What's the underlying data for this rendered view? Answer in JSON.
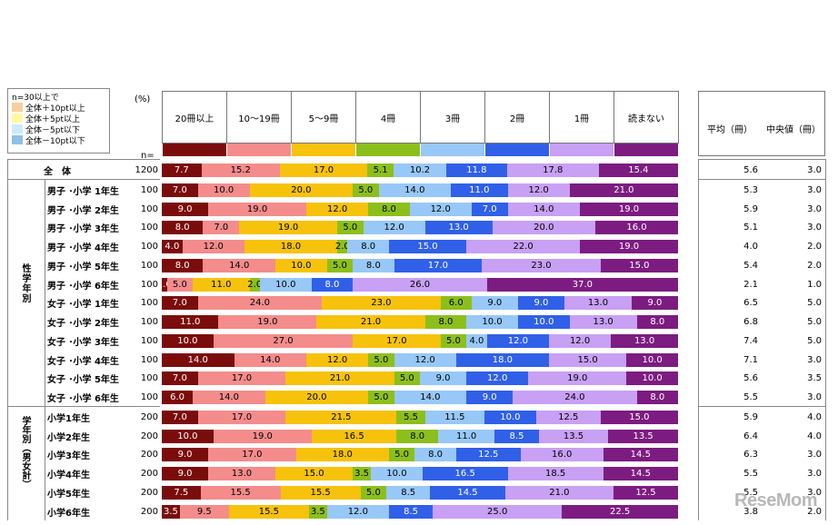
{
  "legend": {
    "caption": "n=30以上で",
    "items": [
      {
        "label": "全体＋10pt以上",
        "color": "#f8cf9c"
      },
      {
        "label": "全体＋5pt以上",
        "color": "#fffaa0"
      },
      {
        "label": "全体－5pt以下",
        "color": "#c8ecfa"
      },
      {
        "label": "全体－10pt以下",
        "color": "#8ec0e8"
      }
    ]
  },
  "unit_label": "(%)",
  "n_label": "n=",
  "stat_headers": [
    "平均（冊）",
    "中央値（冊）"
  ],
  "colors": [
    "#7b0c0c",
    "#f48c8c",
    "#f6c20c",
    "#8cbf1c",
    "#98c8f8",
    "#3060e8",
    "#c8a0f4",
    "#7c1c80"
  ],
  "text_colors": [
    "#ffffff",
    "#000000",
    "#000000",
    "#000000",
    "#000000",
    "#ffffff",
    "#000000",
    "#ffffff"
  ],
  "groups": [
    {
      "label": "性学年別"
    },
    {
      "label": "学年別（男女計）"
    }
  ],
  "chart_data": {
    "type": "bar",
    "categories": [
      "20冊以上",
      "10～19冊",
      "5～9冊",
      "4冊",
      "3冊",
      "2冊",
      "1冊",
      "読まない"
    ],
    "rows": [
      {
        "label": "全　体",
        "n": "1200",
        "values": [
          7.7,
          15.2,
          17.0,
          5.1,
          10.2,
          11.8,
          17.8,
          15.4
        ],
        "mean": "5.6",
        "median": "3.0"
      },
      {
        "label": "男子 ･小学 1年生",
        "n": "100",
        "values": [
          7.0,
          10.0,
          20.0,
          5.0,
          14.0,
          11.0,
          12.0,
          21.0
        ],
        "mean": "5.3",
        "median": "3.0"
      },
      {
        "label": "男子 ･小学 2年生",
        "n": "100",
        "values": [
          9.0,
          19.0,
          12.0,
          8.0,
          12.0,
          7.0,
          14.0,
          19.0
        ],
        "mean": "5.9",
        "median": "3.0"
      },
      {
        "label": "男子 ･小学 3年生",
        "n": "100",
        "values": [
          8.0,
          7.0,
          19.0,
          5.0,
          12.0,
          13.0,
          20.0,
          16.0
        ],
        "mean": "5.1",
        "median": "3.0"
      },
      {
        "label": "男子 ･小学 4年生",
        "n": "100",
        "values": [
          4.0,
          12.0,
          18.0,
          2.0,
          8.0,
          15.0,
          22.0,
          19.0
        ],
        "mean": "4.0",
        "median": "2.0"
      },
      {
        "label": "男子 ･小学 5年生",
        "n": "100",
        "values": [
          8.0,
          14.0,
          10.0,
          5.0,
          8.0,
          17.0,
          23.0,
          15.0
        ],
        "mean": "5.4",
        "median": "2.0"
      },
      {
        "label": "男子 ･小学 6年生",
        "n": "100",
        "values": [
          1.0,
          5.0,
          11.0,
          2.0,
          10.0,
          8.0,
          26.0,
          37.0
        ],
        "mean": "2.1",
        "median": "1.0"
      },
      {
        "label": "女子 ･小学 1年生",
        "n": "100",
        "values": [
          7.0,
          24.0,
          23.0,
          6.0,
          9.0,
          9.0,
          13.0,
          9.0
        ],
        "mean": "6.5",
        "median": "5.0"
      },
      {
        "label": "女子 ･小学 2年生",
        "n": "100",
        "values": [
          11.0,
          19.0,
          21.0,
          8.0,
          10.0,
          10.0,
          13.0,
          8.0
        ],
        "mean": "6.8",
        "median": "5.0"
      },
      {
        "label": "女子 ･小学 3年生",
        "n": "100",
        "values": [
          10.0,
          27.0,
          17.0,
          5.0,
          4.0,
          12.0,
          12.0,
          13.0
        ],
        "mean": "7.4",
        "median": "5.0"
      },
      {
        "label": "女子 ･小学 4年生",
        "n": "100",
        "values": [
          14.0,
          14.0,
          12.0,
          5.0,
          12.0,
          18.0,
          15.0,
          10.0
        ],
        "mean": "7.1",
        "median": "3.0"
      },
      {
        "label": "女子 ･小学 5年生",
        "n": "100",
        "values": [
          7.0,
          17.0,
          21.0,
          5.0,
          9.0,
          12.0,
          19.0,
          10.0
        ],
        "mean": "5.6",
        "median": "3.5"
      },
      {
        "label": "女子 ･小学 6年生",
        "n": "100",
        "values": [
          6.0,
          14.0,
          20.0,
          5.0,
          14.0,
          9.0,
          24.0,
          8.0
        ],
        "mean": "5.5",
        "median": "3.0"
      },
      {
        "label": "小学1年生",
        "n": "200",
        "values": [
          7.0,
          17.0,
          21.5,
          5.5,
          11.5,
          10.0,
          12.5,
          15.0
        ],
        "mean": "5.9",
        "median": "4.0"
      },
      {
        "label": "小学2年生",
        "n": "200",
        "values": [
          10.0,
          19.0,
          16.5,
          8.0,
          11.0,
          8.5,
          13.5,
          13.5
        ],
        "mean": "6.4",
        "median": "4.0"
      },
      {
        "label": "小学3年生",
        "n": "200",
        "values": [
          9.0,
          17.0,
          18.0,
          5.0,
          8.0,
          12.5,
          16.0,
          14.5
        ],
        "mean": "6.3",
        "median": "3.0"
      },
      {
        "label": "小学4年生",
        "n": "200",
        "values": [
          9.0,
          13.0,
          15.0,
          3.5,
          10.0,
          16.5,
          18.5,
          14.5
        ],
        "mean": "5.5",
        "median": "3.0"
      },
      {
        "label": "小学5年生",
        "n": "200",
        "values": [
          7.5,
          15.5,
          15.5,
          5.0,
          8.5,
          14.5,
          21.0,
          12.5
        ],
        "mean": "5.5",
        "median": "3.0"
      },
      {
        "label": "小学6年生",
        "n": "200",
        "values": [
          3.5,
          9.5,
          15.5,
          3.5,
          12.0,
          8.5,
          25.0,
          22.5
        ],
        "mean": "3.8",
        "median": "2.0"
      }
    ]
  },
  "value_labels": [
    [
      "7.7",
      "15.2",
      "17.0",
      "5.1",
      "10.2",
      "11.8",
      "17.8",
      "15.4"
    ],
    [
      "7.0",
      "10.0",
      "20.0",
      "5.0",
      "14.0",
      "11.0",
      "12.0",
      "21.0"
    ],
    [
      "9.0",
      "19.0",
      "12.0",
      "8.0",
      "12.0",
      "7.0",
      "14.0",
      "19.0"
    ],
    [
      "8.0",
      "7.0",
      "19.0",
      "5.0",
      "12.0",
      "13.0",
      "20.0",
      "16.0"
    ],
    [
      "4.0",
      "12.0",
      "18.0",
      "2.0",
      "8.0",
      "15.0",
      "22.0",
      "19.0"
    ],
    [
      "8.0",
      "14.0",
      "10.0",
      "5.0",
      "8.0",
      "17.0",
      "23.0",
      "15.0"
    ],
    [
      "1.0",
      "5.0",
      "11.0",
      "2.0",
      "10.0",
      "8.0",
      "26.0",
      "37.0"
    ],
    [
      "7.0",
      "24.0",
      "23.0",
      "6.0",
      "9.0",
      "9.0",
      "13.0",
      "9.0"
    ],
    [
      "11.0",
      "19.0",
      "21.0",
      "8.0",
      "10.0",
      "10.0",
      "13.0",
      "8.0"
    ],
    [
      "10.0",
      "27.0",
      "17.0",
      "5.0",
      "4.0",
      "12.0",
      "12.0",
      "13.0"
    ],
    [
      "14.0",
      "14.0",
      "12.0",
      "5.0",
      "12.0",
      "18.0",
      "15.0",
      "10.0"
    ],
    [
      "7.0",
      "17.0",
      "21.0",
      "5.0",
      "9.0",
      "12.0",
      "19.0",
      "10.0"
    ],
    [
      "6.0",
      "14.0",
      "20.0",
      "5.0",
      "14.0",
      "9.0",
      "24.0",
      "8.0"
    ],
    [
      "7.0",
      "17.0",
      "21.5",
      "5.5",
      "11.5",
      "10.0",
      "12.5",
      "15.0"
    ],
    [
      "10.0",
      "19.0",
      "16.5",
      "8.0",
      "11.0",
      "8.5",
      "13.5",
      "13.5"
    ],
    [
      "9.0",
      "17.0",
      "18.0",
      "5.0",
      "8.0",
      "12.5",
      "16.0",
      "14.5"
    ],
    [
      "9.0",
      "13.0",
      "15.0",
      "3.5",
      "10.0",
      "16.5",
      "18.5",
      "14.5"
    ],
    [
      "7.5",
      "15.5",
      "15.5",
      "5.0",
      "8.5",
      "14.5",
      "21.0",
      "12.5"
    ],
    [
      "3.5",
      "9.5",
      "15.5",
      "3.5",
      "12.0",
      "8.5",
      "25.0",
      "22.5"
    ]
  ],
  "watermark": "ReseMom"
}
